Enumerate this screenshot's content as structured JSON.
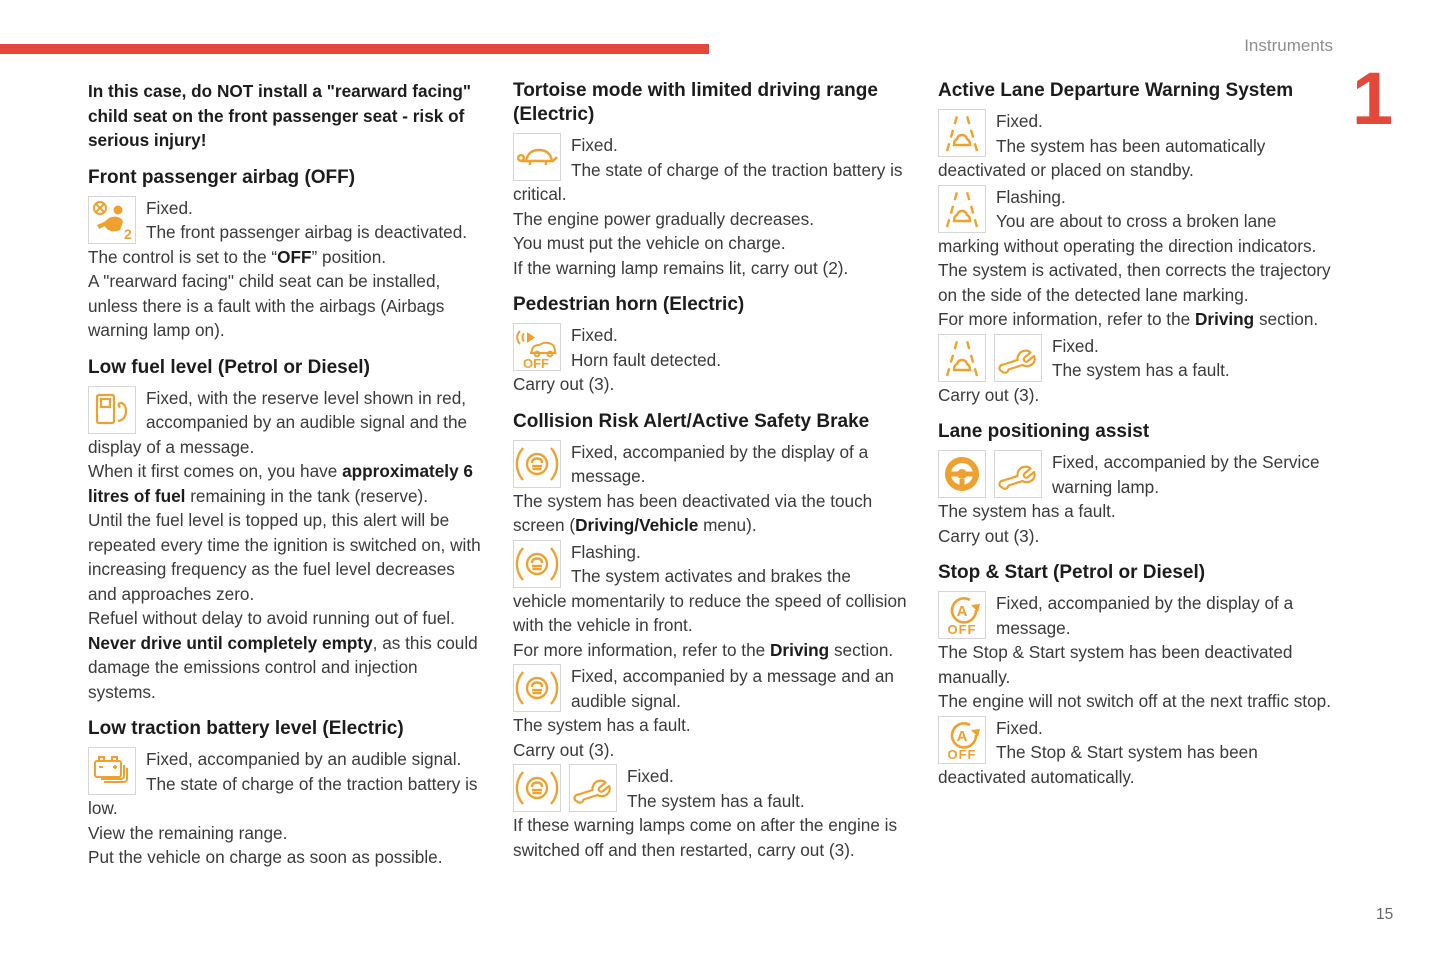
{
  "page": {
    "header_label": "Instruments",
    "chapter_number": "1",
    "page_number": "15",
    "accent_red": "#e2493b",
    "icon_orange": "#efa12f",
    "icons": {
      "airbag-passenger-off-icon": "crossed circle with seated child and number 2",
      "fuel-pump-icon": "fuel pump with hose",
      "traction-battery-icon": "stacked battery outlines",
      "tortoise-icon": "tortoise silhouette",
      "pedestrian-horn-icon": "speaker waves, car and OFF",
      "brake-warning-icon": "car in circle between brackets",
      "wrench-icon": "service spanner",
      "lane-departure-icon": "car between broken lane lines",
      "steering-wheel-icon": "filled steering wheel",
      "stop-start-off-icon": "letter A with circular arrow and OFF"
    }
  },
  "col1": {
    "intro": [
      [
        {
          "b": "In this case, do NOT install a \"rearward facing\" child seat on the front passenger seat - risk of serious injury!"
        }
      ]
    ],
    "airbag": {
      "title": "Front passenger airbag (OFF)",
      "text": [
        [
          "Fixed."
        ],
        [
          "The front passenger airbag is deactivated."
        ],
        [
          "The control is set to the “",
          {
            "b": "OFF"
          },
          "” position."
        ],
        [
          "A \"rearward facing\" child seat can be installed, unless there is a fault with the airbags (Airbags warning lamp on)."
        ]
      ]
    },
    "fuel": {
      "title": "Low fuel level (Petrol or Diesel)",
      "text": [
        [
          "Fixed, with the reserve level shown in red, accompanied by an audible signal and the display of a message."
        ],
        [
          "When it first comes on, you have ",
          {
            "b": "approximately 6 litres of fuel"
          },
          " remaining in the tank (reserve)."
        ],
        [
          "Until the fuel level is topped up, this alert will be repeated every time the ignition is switched on, with increasing frequency as the fuel level decreases and approaches zero."
        ],
        [
          "Refuel without delay to avoid running out of fuel."
        ],
        [
          {
            "b": "Never drive until completely empty"
          },
          ", as this could damage the emissions control and injection systems."
        ]
      ]
    },
    "battery": {
      "title": "Low traction battery level (Electric)",
      "text": [
        [
          "Fixed, accompanied by an audible signal."
        ],
        [
          "The state of charge of the traction battery is low."
        ],
        [
          "View the remaining range."
        ],
        [
          "Put the vehicle on charge as soon as possible."
        ]
      ]
    }
  },
  "col2": {
    "tortoise": {
      "title": "Tortoise mode with limited driving range (Electric)",
      "text": [
        [
          "Fixed."
        ],
        [
          "The state of charge of the traction battery is critical."
        ],
        [
          "The engine power gradually decreases."
        ],
        [
          "You must put the vehicle on charge."
        ],
        [
          "If the warning lamp remains lit, carry out (2)."
        ]
      ]
    },
    "horn": {
      "title": "Pedestrian horn (Electric)",
      "text": [
        [
          "Fixed."
        ],
        [
          "Horn fault detected."
        ],
        [
          "Carry out (3)."
        ]
      ]
    },
    "collision": {
      "title": "Collision Risk Alert/Active Safety Brake",
      "fixed_msg": [
        [
          "Fixed, accompanied by the display of a message."
        ],
        [
          "The system has been deactivated via the touch screen (",
          {
            "b": "Driving/Vehicle"
          },
          " menu)."
        ]
      ],
      "flashing": [
        [
          "Flashing."
        ],
        [
          "The system activates and brakes the vehicle momentarily to reduce the speed of collision with the vehicle in front."
        ],
        [
          "For more information, refer to the ",
          {
            "b": "Driving"
          },
          " section."
        ]
      ],
      "fault": [
        [
          "Fixed, accompanied by a message and an audible signal."
        ],
        [
          "The system has a fault."
        ],
        [
          "Carry out (3)."
        ]
      ],
      "fault_service": [
        [
          "Fixed."
        ],
        [
          "The system has a fault."
        ],
        [
          "If these warning lamps come on after the engine is switched off and then restarted, carry out (3)."
        ]
      ]
    }
  },
  "col3": {
    "lane_warning": {
      "title": "Active Lane Departure Warning System",
      "fixed": [
        [
          "Fixed."
        ],
        [
          "The system has been automatically deactivated or placed on standby."
        ]
      ],
      "flashing": [
        [
          "Flashing."
        ],
        [
          "You are about to cross a broken lane marking without operating the direction indicators."
        ],
        [
          "The system is activated, then corrects the trajectory on the side of the detected lane marking."
        ],
        [
          "For more information, refer to the ",
          {
            "b": "Driving"
          },
          " section."
        ]
      ],
      "fault": [
        [
          "Fixed."
        ],
        [
          "The system has a fault."
        ],
        [
          "Carry out (3)."
        ]
      ]
    },
    "lane_assist": {
      "title": "Lane positioning assist",
      "text": [
        [
          "Fixed, accompanied by the Service warning lamp."
        ],
        [
          "The system has a fault."
        ],
        [
          "Carry out (3)."
        ]
      ]
    },
    "stop_start": {
      "title": "Stop & Start (Petrol or Diesel)",
      "manual": [
        [
          "Fixed, accompanied by the display of a message."
        ],
        [
          "The Stop & Start system has been deactivated manually."
        ],
        [
          "The engine will not switch off at the next traffic stop."
        ]
      ],
      "auto": [
        [
          "Fixed."
        ],
        [
          "The Stop & Start system has been deactivated automatically."
        ]
      ]
    }
  }
}
